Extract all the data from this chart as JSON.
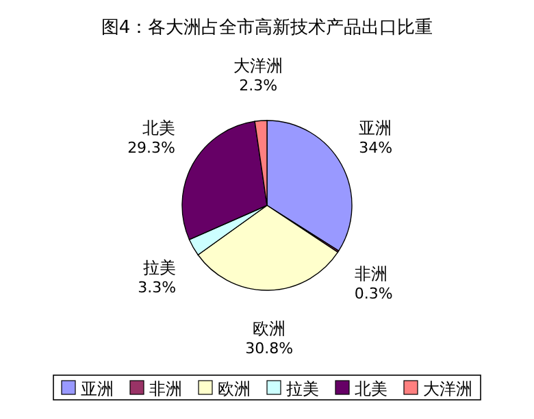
{
  "chart_data": {
    "type": "pie",
    "title": "图4：各大洲占全市高新技术产品出口比重",
    "categories": [
      "亚洲",
      "非洲",
      "欧洲",
      "拉美",
      "北美",
      "大洋洲"
    ],
    "values": [
      34,
      0.3,
      30.8,
      3.3,
      29.3,
      2.3
    ],
    "colors": [
      "#9999ff",
      "#993366",
      "#ffffcc",
      "#ccffff",
      "#660066",
      "#ff8080"
    ],
    "value_labels": [
      "34%",
      "0.3%",
      "30.8%",
      "3.3%",
      "29.3%",
      "2.3%"
    ],
    "legend": "bottom"
  }
}
